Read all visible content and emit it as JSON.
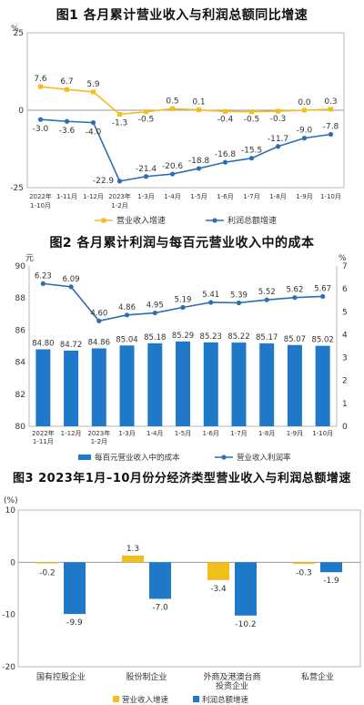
{
  "chart_data": [
    {
      "type": "line",
      "title": "图1  各月累计营业收入与利润总额同比增速",
      "ylabel": "%",
      "ylim": [
        -25,
        25
      ],
      "yticks": [
        "25",
        "0",
        "-25"
      ],
      "categories": [
        [
          "2022年",
          "1-10月"
        ],
        [
          "1-11月"
        ],
        [
          "1-12月"
        ],
        [
          "2023年",
          "1-2月"
        ],
        [
          "1-3月"
        ],
        [
          "1-4月"
        ],
        [
          "1-5月"
        ],
        [
          "1-6月"
        ],
        [
          "1-7月"
        ],
        [
          "1-8月"
        ],
        [
          "1-9月"
        ],
        [
          "1-10月"
        ]
      ],
      "series": [
        {
          "name": "营业收入增速",
          "color": "#f2be1a",
          "values": [
            7.6,
            6.7,
            5.9,
            -1.3,
            -0.5,
            0.5,
            0.1,
            -0.4,
            -0.5,
            -0.3,
            0.0,
            0.3
          ],
          "labels": [
            "7.6",
            "6.7",
            "5.9",
            "-1.3",
            "-0.5",
            "0.5",
            "0.1",
            "-0.4",
            "-0.5",
            "-0.3",
            "0.0",
            "0.3"
          ]
        },
        {
          "name": "利润总额增速",
          "color": "#2e6db4",
          "values": [
            -3.0,
            -3.6,
            -4.0,
            -22.9,
            -21.4,
            -20.6,
            -18.8,
            -16.8,
            -15.5,
            -11.7,
            -9.0,
            -7.8
          ],
          "labels": [
            "-3.0",
            "-3.6",
            "-4.0",
            "-22.9",
            "-21.4",
            "-20.6",
            "-18.8",
            "-16.8",
            "-15.5",
            "-11.7",
            "-9.0",
            "-7.8"
          ]
        }
      ]
    },
    {
      "type": "bar",
      "title": "图2  各月累计利润与每百元营业收入中的成本",
      "ylabel_left": "元",
      "ylabel_right": "%",
      "ylim": [
        80,
        90
      ],
      "y2lim": [
        0,
        7
      ],
      "yticks": [
        "80",
        "82",
        "84",
        "86",
        "88",
        "90"
      ],
      "y2ticks": [
        "0",
        "1",
        "2",
        "3",
        "4",
        "5",
        "6",
        "7"
      ],
      "categories": [
        [
          "2022年",
          "1-11月"
        ],
        [
          "1-12月"
        ],
        [
          "2023年",
          "1-2月"
        ],
        [
          "1-3月"
        ],
        [
          "1-4月"
        ],
        [
          "1-5月"
        ],
        [
          "1-6月"
        ],
        [
          "1-7月"
        ],
        [
          "1-8月"
        ],
        [
          "1-9月"
        ],
        [
          "1-10月"
        ]
      ],
      "series": [
        {
          "name": "每百元营业收入中的成本",
          "color": "#1f78c8",
          "axis": "left",
          "values": [
            84.8,
            84.72,
            84.86,
            85.04,
            85.18,
            85.29,
            85.23,
            85.22,
            85.17,
            85.07,
            85.02
          ],
          "labels": [
            "84.80",
            "84.72",
            "84.86",
            "85.04",
            "85.18",
            "85.29",
            "85.23",
            "85.22",
            "85.17",
            "85.07",
            "85.02"
          ]
        },
        {
          "name": "营业收入利润率",
          "color": "#2e6db4",
          "axis": "right",
          "type": "line",
          "values": [
            6.23,
            6.09,
            4.6,
            4.86,
            4.95,
            5.19,
            5.41,
            5.39,
            5.52,
            5.62,
            5.67
          ],
          "labels": [
            "6.23",
            "6.09",
            "4.60",
            "4.86",
            "4.95",
            "5.19",
            "5.41",
            "5.39",
            "5.52",
            "5.62",
            "5.67"
          ]
        }
      ]
    },
    {
      "type": "bar",
      "title": "图3  2023年1月–10月份分经济类型营业收入与利润总额增速",
      "ylabel": "(%)",
      "ylim": [
        -20,
        10
      ],
      "yticks": [
        "10",
        "0",
        "-10",
        "-20"
      ],
      "categories": [
        "国有控股企业",
        "股份制企业",
        "外商及港澳台商投资企业",
        "私营企业"
      ],
      "category_lines": [
        [
          "国有控股企业"
        ],
        [
          "股份制企业"
        ],
        [
          "外商及港澳台商",
          "投资企业"
        ],
        [
          "私营企业"
        ]
      ],
      "series": [
        {
          "name": "营业收入增速",
          "color": "#f2be1a",
          "values": [
            -0.2,
            1.3,
            -3.4,
            -0.3
          ],
          "labels": [
            "-0.2",
            "1.3",
            "-3.4",
            "-0.3"
          ]
        },
        {
          "name": "利润总额增速",
          "color": "#1f78c8",
          "values": [
            -9.9,
            -7.0,
            -10.2,
            -1.9
          ],
          "labels": [
            "-9.9",
            "-7.0",
            "-10.2",
            "-1.9"
          ]
        }
      ]
    }
  ]
}
